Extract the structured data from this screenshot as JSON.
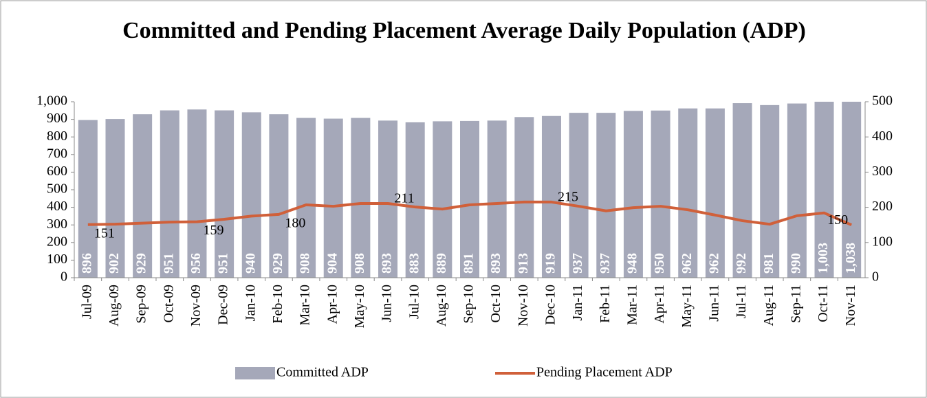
{
  "chart_data": {
    "type": "bar",
    "title": "Committed and Pending Placement Average Daily Population (ADP)",
    "categories": [
      "Jul-09",
      "Aug-09",
      "Sep-09",
      "Oct-09",
      "Nov-09",
      "Dec-09",
      "Jan-10",
      "Feb-10",
      "Mar-10",
      "Apr-10",
      "May-10",
      "Jun-10",
      "Jul-10",
      "Aug-10",
      "Sep-10",
      "Oct-10",
      "Nov-10",
      "Dec-10",
      "Jan-11",
      "Feb-11",
      "Mar-11",
      "Apr-11",
      "May-11",
      "Jun-11",
      "Jul-11",
      "Aug-11",
      "Sep-11",
      "Oct-11",
      "Nov-11"
    ],
    "series": [
      {
        "name": "Committed ADP",
        "type": "bar",
        "color": "#a5a8b9",
        "values": [
          896,
          902,
          929,
          951,
          956,
          951,
          940,
          929,
          908,
          904,
          908,
          893,
          883,
          889,
          891,
          893,
          913,
          919,
          937,
          937,
          948,
          950,
          962,
          962,
          992,
          981,
          990,
          1003,
          1038
        ],
        "value_labels": [
          "896",
          "902",
          "929",
          "951",
          "956",
          "951",
          "940",
          "929",
          "908",
          "904",
          "908",
          "893",
          "883",
          "889",
          "891",
          "893",
          "913",
          "919",
          "937",
          "937",
          "948",
          "950",
          "962",
          "962",
          "992",
          "981",
          "990",
          "1,003",
          "1,038"
        ]
      },
      {
        "name": "Pending Placement ADP",
        "type": "line",
        "axis": "y2",
        "color": "#d0603a",
        "values": [
          151,
          152,
          155,
          158,
          159,
          166,
          175,
          180,
          207,
          203,
          211,
          211,
          201,
          195,
          207,
          211,
          215,
          215,
          203,
          190,
          199,
          203,
          193,
          178,
          162,
          152,
          176,
          184,
          150
        ],
        "value_labels": [
          "151",
          null,
          null,
          null,
          "159",
          null,
          null,
          "180",
          null,
          null,
          null,
          "211",
          null,
          null,
          null,
          null,
          null,
          "215",
          null,
          null,
          null,
          null,
          null,
          null,
          null,
          null,
          null,
          null,
          "150"
        ]
      }
    ],
    "ylim": [
      0,
      1000
    ],
    "yticks": [
      0,
      100,
      200,
      300,
      400,
      500,
      600,
      700,
      800,
      900,
      {
        "value": 1000,
        "label": "1,000"
      }
    ],
    "y2lim": [
      0,
      500
    ],
    "y2ticks": [
      0,
      100,
      200,
      300,
      400,
      500
    ],
    "legend": "bottom"
  }
}
